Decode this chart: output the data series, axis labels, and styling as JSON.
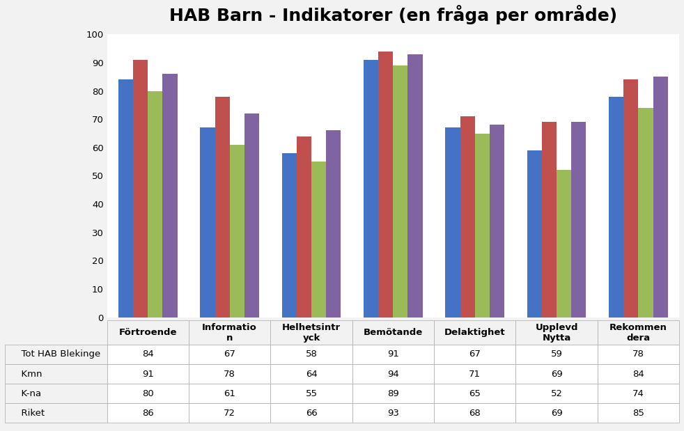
{
  "title": "HAB Barn - Indikatorer (en fråga per område)",
  "categories": [
    "Förtroende",
    "Informatio\nn",
    "Helhetsintr\nyck",
    "Bemötande",
    "Delaktighet",
    "Upplevd\nNytta",
    "Rekommen\ndera"
  ],
  "series": [
    {
      "label": "Tot HAB Blekinge",
      "color": "#4472C4",
      "values": [
        84,
        67,
        58,
        91,
        67,
        59,
        78
      ]
    },
    {
      "label": "Kmn",
      "color": "#C0504D",
      "values": [
        91,
        78,
        64,
        94,
        71,
        69,
        84
      ]
    },
    {
      "label": "K-na",
      "color": "#9BBB59",
      "values": [
        80,
        61,
        55,
        89,
        65,
        52,
        74
      ]
    },
    {
      "label": "Riket",
      "color": "#8064A2",
      "values": [
        86,
        72,
        66,
        93,
        68,
        69,
        85
      ]
    }
  ],
  "ylim": [
    0,
    100
  ],
  "yticks": [
    0,
    10,
    20,
    30,
    40,
    50,
    60,
    70,
    80,
    90,
    100
  ],
  "table_rows": [
    [
      "Tot HAB Blekinge",
      "84",
      "67",
      "58",
      "91",
      "67",
      "59",
      "78"
    ],
    [
      "Kmn",
      "91",
      "78",
      "64",
      "94",
      "71",
      "69",
      "84"
    ],
    [
      "K-na",
      "80",
      "61",
      "55",
      "89",
      "65",
      "52",
      "74"
    ],
    [
      "Riket",
      "86",
      "72",
      "66",
      "93",
      "68",
      "69",
      "85"
    ]
  ],
  "background_color": "#F2F2F2",
  "plot_bg_color": "#FFFFFF",
  "grid_color": "#FFFFFF",
  "title_fontsize": 18,
  "axis_fontsize": 9.5,
  "table_fontsize": 9.5
}
